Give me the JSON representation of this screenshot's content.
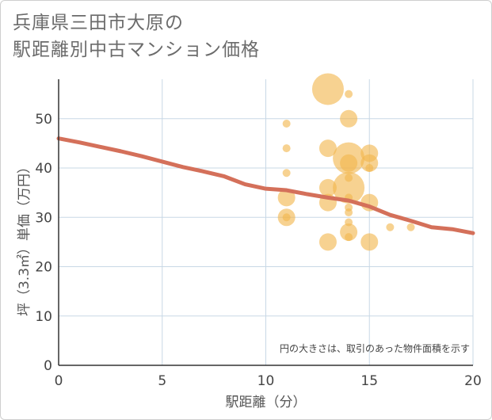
{
  "title": {
    "line1": "兵庫県三田市大原の",
    "line2": "駅距離別中古マンション価格"
  },
  "chart_data": {
    "type": "scatter",
    "xlabel": "駅距離（分）",
    "ylabel": "坪（3.3㎡）単価（万円）",
    "xlim": [
      0,
      20
    ],
    "ylim": [
      0,
      58
    ],
    "x_ticks": [
      0,
      5,
      10,
      15,
      20
    ],
    "y_ticks": [
      0,
      10,
      20,
      30,
      40,
      50
    ],
    "grid": true,
    "note": "円の大きさは、取引のあった物件面積を示す",
    "colors": {
      "bubble": "#f2b74e",
      "trend": "#d4705a",
      "grid": "#c8d8e6"
    },
    "bubbles": [
      {
        "x": 11,
        "y": 49,
        "size": 1
      },
      {
        "x": 11,
        "y": 44,
        "size": 1
      },
      {
        "x": 11,
        "y": 39,
        "size": 1
      },
      {
        "x": 11,
        "y": 34,
        "size": 2
      },
      {
        "x": 11,
        "y": 30,
        "size": 2
      },
      {
        "x": 11,
        "y": 30,
        "size": 1
      },
      {
        "x": 13,
        "y": 56,
        "size": 4
      },
      {
        "x": 13,
        "y": 44,
        "size": 2
      },
      {
        "x": 13,
        "y": 36,
        "size": 2
      },
      {
        "x": 13,
        "y": 33,
        "size": 2
      },
      {
        "x": 13,
        "y": 25,
        "size": 2
      },
      {
        "x": 14,
        "y": 55,
        "size": 1
      },
      {
        "x": 14,
        "y": 50,
        "size": 2
      },
      {
        "x": 14,
        "y": 42,
        "size": 4
      },
      {
        "x": 14,
        "y": 41,
        "size": 2
      },
      {
        "x": 14,
        "y": 38,
        "size": 1
      },
      {
        "x": 14,
        "y": 36,
        "size": 4
      },
      {
        "x": 14,
        "y": 34,
        "size": 1
      },
      {
        "x": 14,
        "y": 32,
        "size": 1
      },
      {
        "x": 14,
        "y": 31,
        "size": 1
      },
      {
        "x": 14,
        "y": 29,
        "size": 1
      },
      {
        "x": 14,
        "y": 27,
        "size": 2
      },
      {
        "x": 14,
        "y": 26,
        "size": 1
      },
      {
        "x": 15,
        "y": 43,
        "size": 2
      },
      {
        "x": 15,
        "y": 41,
        "size": 2
      },
      {
        "x": 15,
        "y": 40,
        "size": 1
      },
      {
        "x": 15,
        "y": 33,
        "size": 2
      },
      {
        "x": 15,
        "y": 25,
        "size": 2
      },
      {
        "x": 16,
        "y": 28,
        "size": 1
      },
      {
        "x": 17,
        "y": 28,
        "size": 1
      }
    ],
    "trend": {
      "x": [
        0,
        1,
        2,
        3,
        4,
        5,
        6,
        7,
        8,
        9,
        10,
        11,
        12,
        13,
        14,
        15,
        16,
        17,
        18,
        19,
        20
      ],
      "y": [
        46,
        45.2,
        44.3,
        43.4,
        42.4,
        41.3,
        40.2,
        39.3,
        38.3,
        36.7,
        35.8,
        35.5,
        34.7,
        34,
        33.4,
        32.2,
        30.5,
        29.3,
        28,
        27.6,
        26.8
      ]
    }
  }
}
